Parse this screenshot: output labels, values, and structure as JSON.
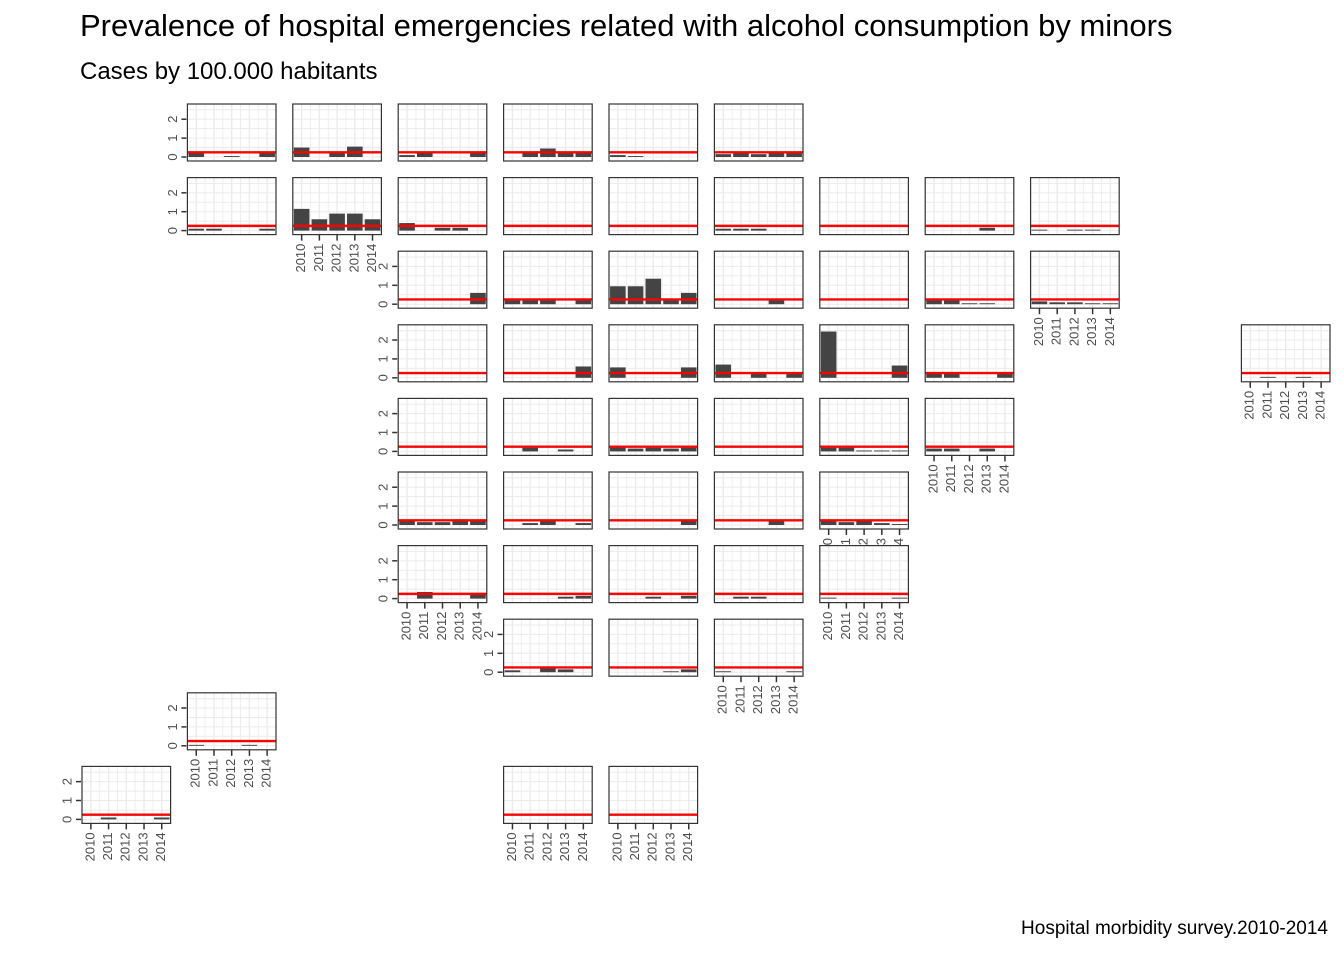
{
  "title": "Prevalence of hospital emergencies related with alcohol consumption by minors",
  "subtitle": "Cases by 100.000 habitants",
  "caption": "Hospital morbidity survey.2010-2014",
  "colors": {
    "bar": "#444444",
    "reference_line": "#ff0000",
    "grid": "#ebebeb",
    "panel_border": "#333333",
    "tick_text": "#4d4d4d"
  },
  "chart_data": {
    "type": "bar",
    "layout": "geofacet grid of small multiples (one panel per province)",
    "x": [
      "2010",
      "2011",
      "2012",
      "2013",
      "2014"
    ],
    "y_ticks": [
      "0",
      "1",
      "2"
    ],
    "ylim": [
      0,
      2.7
    ],
    "reference_value": 0.25,
    "grid": true,
    "legend": "none",
    "panels": [
      {
        "row": 1,
        "col": 2,
        "values": [
          0.2,
          0,
          0.05,
          0,
          0.2
        ],
        "y_axis": true,
        "x_axis": false
      },
      {
        "row": 1,
        "col": 3,
        "values": [
          0.5,
          0,
          0.25,
          0.55,
          0
        ],
        "y_axis": false,
        "x_axis": false
      },
      {
        "row": 1,
        "col": 4,
        "values": [
          0.1,
          0.2,
          0,
          0,
          0.2
        ],
        "y_axis": false,
        "x_axis": false
      },
      {
        "row": 1,
        "col": 5,
        "values": [
          0,
          0.25,
          0.45,
          0.25,
          0.25
        ],
        "y_axis": false,
        "x_axis": false
      },
      {
        "row": 1,
        "col": 6,
        "values": [
          0.1,
          0.05,
          0,
          0,
          0
        ],
        "y_axis": false,
        "x_axis": false
      },
      {
        "row": 1,
        "col": 7,
        "values": [
          0.15,
          0.25,
          0.15,
          0.25,
          0.2
        ],
        "y_axis": false,
        "x_axis": false
      },
      {
        "row": 2,
        "col": 2,
        "values": [
          0.1,
          0.1,
          0,
          0,
          0.1
        ],
        "y_axis": true,
        "x_axis": false
      },
      {
        "row": 2,
        "col": 3,
        "values": [
          1.15,
          0.6,
          0.9,
          0.9,
          0.6
        ],
        "y_axis": false,
        "x_axis": true
      },
      {
        "row": 2,
        "col": 4,
        "values": [
          0.4,
          0,
          0.15,
          0.15,
          0
        ],
        "y_axis": false,
        "x_axis": false
      },
      {
        "row": 2,
        "col": 5,
        "values": [
          0,
          0,
          0,
          0,
          0
        ],
        "y_axis": false,
        "x_axis": false
      },
      {
        "row": 2,
        "col": 6,
        "values": [
          0,
          0,
          0,
          0,
          0
        ],
        "y_axis": false,
        "x_axis": false
      },
      {
        "row": 2,
        "col": 7,
        "values": [
          0.1,
          0.1,
          0.1,
          0,
          0
        ],
        "y_axis": false,
        "x_axis": false
      },
      {
        "row": 2,
        "col": 8,
        "values": [
          0,
          0,
          0,
          0,
          0
        ],
        "y_axis": false,
        "x_axis": false
      },
      {
        "row": 2,
        "col": 9,
        "values": [
          0,
          0,
          0,
          0.15,
          0
        ],
        "y_axis": false,
        "x_axis": false
      },
      {
        "row": 2,
        "col": 10,
        "values": [
          0.05,
          0,
          0.05,
          0.05,
          0
        ],
        "y_axis": false,
        "x_axis": false
      },
      {
        "row": 3,
        "col": 4,
        "values": [
          0,
          0,
          0,
          0,
          0.6
        ],
        "y_axis": true,
        "x_axis": false
      },
      {
        "row": 3,
        "col": 5,
        "values": [
          0.2,
          0.3,
          0.2,
          0,
          0.2
        ],
        "y_axis": false,
        "x_axis": false
      },
      {
        "row": 3,
        "col": 6,
        "values": [
          0.95,
          0.95,
          1.35,
          0.3,
          0.6
        ],
        "y_axis": false,
        "x_axis": false
      },
      {
        "row": 3,
        "col": 7,
        "values": [
          0,
          0,
          0,
          0.25,
          0
        ],
        "y_axis": false,
        "x_axis": false
      },
      {
        "row": 3,
        "col": 8,
        "values": [
          0,
          0,
          0,
          0,
          0
        ],
        "y_axis": false,
        "x_axis": false
      },
      {
        "row": 3,
        "col": 9,
        "values": [
          0.2,
          0.2,
          0.05,
          0.05,
          0
        ],
        "y_axis": false,
        "x_axis": false
      },
      {
        "row": 3,
        "col": 10,
        "values": [
          0.15,
          0.1,
          0.1,
          0.05,
          0.05
        ],
        "y_axis": false,
        "x_axis": true
      },
      {
        "row": 4,
        "col": 4,
        "values": [
          0,
          0,
          0,
          0,
          0
        ],
        "y_axis": true,
        "x_axis": false
      },
      {
        "row": 4,
        "col": 5,
        "values": [
          0,
          0,
          0,
          0,
          0.6
        ],
        "y_axis": false,
        "x_axis": false
      },
      {
        "row": 4,
        "col": 6,
        "values": [
          0.55,
          0,
          0,
          0,
          0.55
        ],
        "y_axis": false,
        "x_axis": false
      },
      {
        "row": 4,
        "col": 7,
        "values": [
          0.7,
          0,
          0.2,
          0,
          0.3
        ],
        "y_axis": false,
        "x_axis": false
      },
      {
        "row": 4,
        "col": 8,
        "values": [
          2.45,
          0,
          0,
          0,
          0.65
        ],
        "y_axis": false,
        "x_axis": false
      },
      {
        "row": 4,
        "col": 9,
        "values": [
          0.2,
          0.2,
          0,
          0,
          0.2
        ],
        "y_axis": false,
        "x_axis": false
      },
      {
        "row": 4,
        "col": 12,
        "values": [
          0,
          0.05,
          0,
          0.05,
          0
        ],
        "y_axis": false,
        "x_axis": true
      },
      {
        "row": 5,
        "col": 4,
        "values": [
          0,
          0,
          0,
          0,
          0
        ],
        "y_axis": true,
        "x_axis": false
      },
      {
        "row": 5,
        "col": 5,
        "values": [
          0,
          0.2,
          0,
          0.1,
          0
        ],
        "y_axis": false,
        "x_axis": false
      },
      {
        "row": 5,
        "col": 6,
        "values": [
          0.25,
          0.15,
          0.2,
          0.15,
          0.2
        ],
        "y_axis": false,
        "x_axis": false
      },
      {
        "row": 5,
        "col": 7,
        "values": [
          0,
          0,
          0,
          0,
          0
        ],
        "y_axis": false,
        "x_axis": false
      },
      {
        "row": 5,
        "col": 8,
        "values": [
          0.2,
          0.2,
          0.05,
          0.05,
          0.05
        ],
        "y_axis": false,
        "x_axis": false
      },
      {
        "row": 5,
        "col": 9,
        "values": [
          0.15,
          0.15,
          0,
          0.15,
          0
        ],
        "y_axis": false,
        "x_axis": true
      },
      {
        "row": 6,
        "col": 4,
        "values": [
          0.2,
          0.15,
          0.15,
          0.3,
          0.2
        ],
        "y_axis": true,
        "x_axis": false
      },
      {
        "row": 6,
        "col": 5,
        "values": [
          0,
          0.1,
          0.2,
          0,
          0.1
        ],
        "y_axis": false,
        "x_axis": false
      },
      {
        "row": 6,
        "col": 6,
        "values": [
          0,
          0,
          0,
          0,
          0.2
        ],
        "y_axis": false,
        "x_axis": false
      },
      {
        "row": 6,
        "col": 7,
        "values": [
          0,
          0,
          0,
          0.2,
          0
        ],
        "y_axis": false,
        "x_axis": false
      },
      {
        "row": 6,
        "col": 8,
        "values": [
          0.2,
          0.15,
          0.2,
          0.1,
          0.05
        ],
        "y_axis": false,
        "x_axis": true
      },
      {
        "row": 7,
        "col": 4,
        "values": [
          0,
          0.35,
          0,
          0,
          0.2
        ],
        "y_axis": true,
        "x_axis": true
      },
      {
        "row": 7,
        "col": 5,
        "values": [
          0,
          0,
          0,
          0.1,
          0.15
        ],
        "y_axis": false,
        "x_axis": false
      },
      {
        "row": 7,
        "col": 6,
        "values": [
          0,
          0,
          0.1,
          0,
          0.15
        ],
        "y_axis": false,
        "x_axis": false
      },
      {
        "row": 7,
        "col": 7,
        "values": [
          0,
          0.1,
          0.1,
          0,
          0
        ],
        "y_axis": false,
        "x_axis": false
      },
      {
        "row": 7,
        "col": 8,
        "values": [
          0.05,
          0,
          0,
          0,
          0.05
        ],
        "y_axis": false,
        "x_axis": true
      },
      {
        "row": 8,
        "col": 5,
        "values": [
          0.1,
          0,
          0.2,
          0.15,
          0
        ],
        "y_axis": true,
        "x_axis": false
      },
      {
        "row": 8,
        "col": 6,
        "values": [
          0,
          0,
          0,
          0.05,
          0.15
        ],
        "y_axis": false,
        "x_axis": false
      },
      {
        "row": 8,
        "col": 7,
        "values": [
          0.05,
          0,
          0,
          0,
          0.05
        ],
        "y_axis": false,
        "x_axis": true
      },
      {
        "row": 9,
        "col": 2,
        "values": [
          0.05,
          0,
          0,
          0.05,
          0
        ],
        "y_axis": true,
        "x_axis": true
      },
      {
        "row": 10,
        "col": 1,
        "values": [
          0,
          0.1,
          0,
          0,
          0.1
        ],
        "y_axis": true,
        "x_axis": true
      },
      {
        "row": 10,
        "col": 5,
        "values": [
          0,
          0,
          0,
          0,
          0
        ],
        "y_axis": false,
        "x_axis": true
      },
      {
        "row": 10,
        "col": 6,
        "values": [
          0,
          0,
          0,
          0,
          0
        ],
        "y_axis": false,
        "x_axis": true
      }
    ]
  }
}
